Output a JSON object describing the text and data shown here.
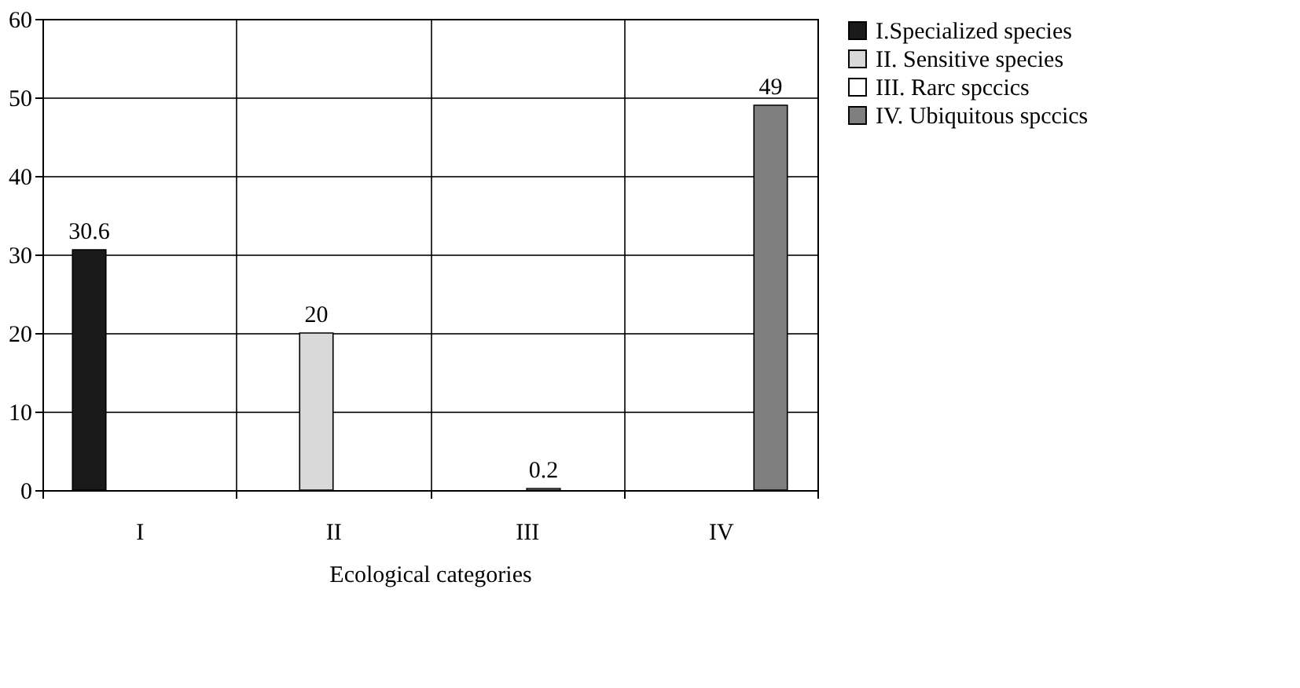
{
  "chart_data": {
    "type": "bar",
    "xlabel": "Ecological categories",
    "categories": [
      "I",
      "II",
      "III",
      "IV"
    ],
    "series": [
      {
        "name": "I.Specialized species",
        "color": "#1a1a1a",
        "values": [
          30.6,
          null,
          null,
          null
        ]
      },
      {
        "name": "II. Sensitive species",
        "color": "#d9d9d9",
        "values": [
          null,
          20,
          null,
          null
        ]
      },
      {
        "name": "III. Rarc spccics",
        "color": "#ffffff",
        "values": [
          null,
          null,
          0.2,
          null
        ]
      },
      {
        "name": "IV. Ubiquitous spccics",
        "color": "#7f7f7f",
        "values": [
          null,
          null,
          null,
          49
        ]
      }
    ],
    "ylim": [
      0,
      60
    ],
    "yticks": [
      0,
      10,
      20,
      30,
      40,
      50,
      60
    ],
    "grid": true,
    "legend": "right",
    "data_labels": true
  }
}
